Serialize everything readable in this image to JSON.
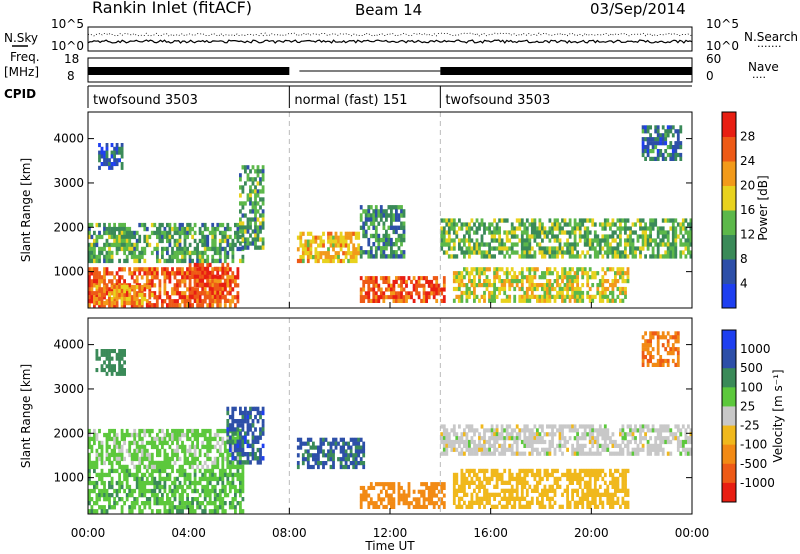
{
  "header": {
    "title": "Rankin Inlet (fitACF)",
    "beam": "Beam 14",
    "date": "03/Sep/2014"
  },
  "noise_panel": {
    "left_label": "N.Sky",
    "right_label": "N.Search",
    "tick_top": "10^5",
    "tick_bottom": "10^0",
    "legend_dots": "·······"
  },
  "freq_panel": {
    "left_label_1": "Freq.",
    "left_label_2": "[MHz]",
    "left_ticks": [
      "18",
      "8"
    ],
    "right_label": "Nave",
    "right_ticks": [
      "60",
      "0"
    ],
    "legend_dots": "····"
  },
  "cpid_panel": {
    "label": "CPID",
    "segments": [
      {
        "name": "twofsound 3503",
        "start_h": 0,
        "end_h": 8
      },
      {
        "name": "normal (fast) 151",
        "start_h": 8,
        "end_h": 14
      },
      {
        "name": "twofsound 3503",
        "start_h": 14,
        "end_h": 24
      }
    ]
  },
  "x_axis": {
    "label": "Time UT",
    "ticks": [
      "00:00",
      "04:00",
      "08:00",
      "12:00",
      "16:00",
      "20:00",
      "00:00"
    ]
  },
  "power_panel": {
    "ylabel": "Slant Range [km]",
    "yticks": [
      "1000",
      "2000",
      "3000",
      "4000"
    ],
    "colorbar_label": "Power [dB]",
    "colorbar_ticks": [
      "4",
      "8",
      "12",
      "16",
      "20",
      "24",
      "28"
    ],
    "colors": [
      "#1e3ff0",
      "#2d4fa8",
      "#3a8a58",
      "#5cb84a",
      "#e8d21e",
      "#f29a1a",
      "#ee5a16",
      "#e81e12"
    ]
  },
  "velocity_panel": {
    "ylabel": "Slant Range [km]",
    "yticks": [
      "1000",
      "2000",
      "3000",
      "4000"
    ],
    "colorbar_label": "Velocity [m s⁻¹]",
    "colorbar_ticks": [
      "1000",
      "500",
      "100",
      "25",
      "-25",
      "-100",
      "-500",
      "-1000"
    ],
    "colors": [
      "#1e3ff0",
      "#2d4fa8",
      "#3a8a58",
      "#5cc83c",
      "#c8c8c8",
      "#f0b81c",
      "#f28a14",
      "#ee5a16",
      "#e81e12"
    ]
  },
  "chart_data": [
    {
      "type": "heatmap",
      "title": "Power",
      "xlabel": "Time UT",
      "ylabel": "Slant Range [km]",
      "x_range_h": [
        0,
        24
      ],
      "ylim": [
        180,
        4600
      ],
      "colorbar": "Power [dB]",
      "patches": [
        {
          "t0": 0.0,
          "t1": 6.0,
          "r0": 200,
          "r1": 1100,
          "v": 26
        },
        {
          "t0": 0.2,
          "t1": 2.6,
          "r0": 250,
          "r1": 700,
          "v": 22
        },
        {
          "t0": 4.0,
          "t1": 5.6,
          "r0": 300,
          "r1": 1200,
          "v": 28
        },
        {
          "t0": 0.0,
          "t1": 6.3,
          "r0": 1200,
          "r1": 2100,
          "v": 12
        },
        {
          "t0": 0.4,
          "t1": 1.4,
          "r0": 3300,
          "r1": 3900,
          "v": 6
        },
        {
          "t0": 6.0,
          "t1": 7.0,
          "r0": 1500,
          "r1": 3400,
          "v": 12
        },
        {
          "t0": 8.3,
          "t1": 10.8,
          "r0": 1200,
          "r1": 1900,
          "v": 20
        },
        {
          "t0": 10.8,
          "t1": 14.2,
          "r0": 300,
          "r1": 900,
          "v": 26
        },
        {
          "t0": 10.8,
          "t1": 12.6,
          "r0": 1300,
          "r1": 2500,
          "v": 10
        },
        {
          "t0": 14.0,
          "t1": 24.0,
          "r0": 1300,
          "r1": 2200,
          "v": 13
        },
        {
          "t0": 14.5,
          "t1": 21.5,
          "r0": 300,
          "r1": 1100,
          "v": 18
        },
        {
          "t0": 22.0,
          "t1": 23.6,
          "r0": 3500,
          "r1": 4300,
          "v": 8
        }
      ]
    },
    {
      "type": "heatmap",
      "title": "Velocity",
      "xlabel": "Time UT",
      "ylabel": "Slant Range [km]",
      "x_range_h": [
        0,
        24
      ],
      "ylim": [
        180,
        4600
      ],
      "colorbar": "Velocity [m s⁻¹]",
      "patches": [
        {
          "t0": 0.0,
          "t1": 6.2,
          "r0": 200,
          "r1": 1200,
          "v": 80
        },
        {
          "t0": 0.0,
          "t1": 6.2,
          "r0": 1200,
          "r1": 2100,
          "v": 40
        },
        {
          "t0": 0.3,
          "t1": 1.5,
          "r0": 3300,
          "r1": 3900,
          "v": 300
        },
        {
          "t0": 5.5,
          "t1": 7.0,
          "r0": 1300,
          "r1": 2600,
          "v": 700
        },
        {
          "t0": 8.3,
          "t1": 11.0,
          "r0": 1200,
          "r1": 1900,
          "v": 600
        },
        {
          "t0": 10.8,
          "t1": 14.2,
          "r0": 300,
          "r1": 900,
          "v": -300
        },
        {
          "t0": 14.0,
          "t1": 24.0,
          "r0": 1500,
          "r1": 2200,
          "v": 0
        },
        {
          "t0": 14.5,
          "t1": 21.5,
          "r0": 300,
          "r1": 1200,
          "v": -60
        },
        {
          "t0": 22.0,
          "t1": 23.5,
          "r0": 3500,
          "r1": 4300,
          "v": -400
        }
      ]
    }
  ]
}
